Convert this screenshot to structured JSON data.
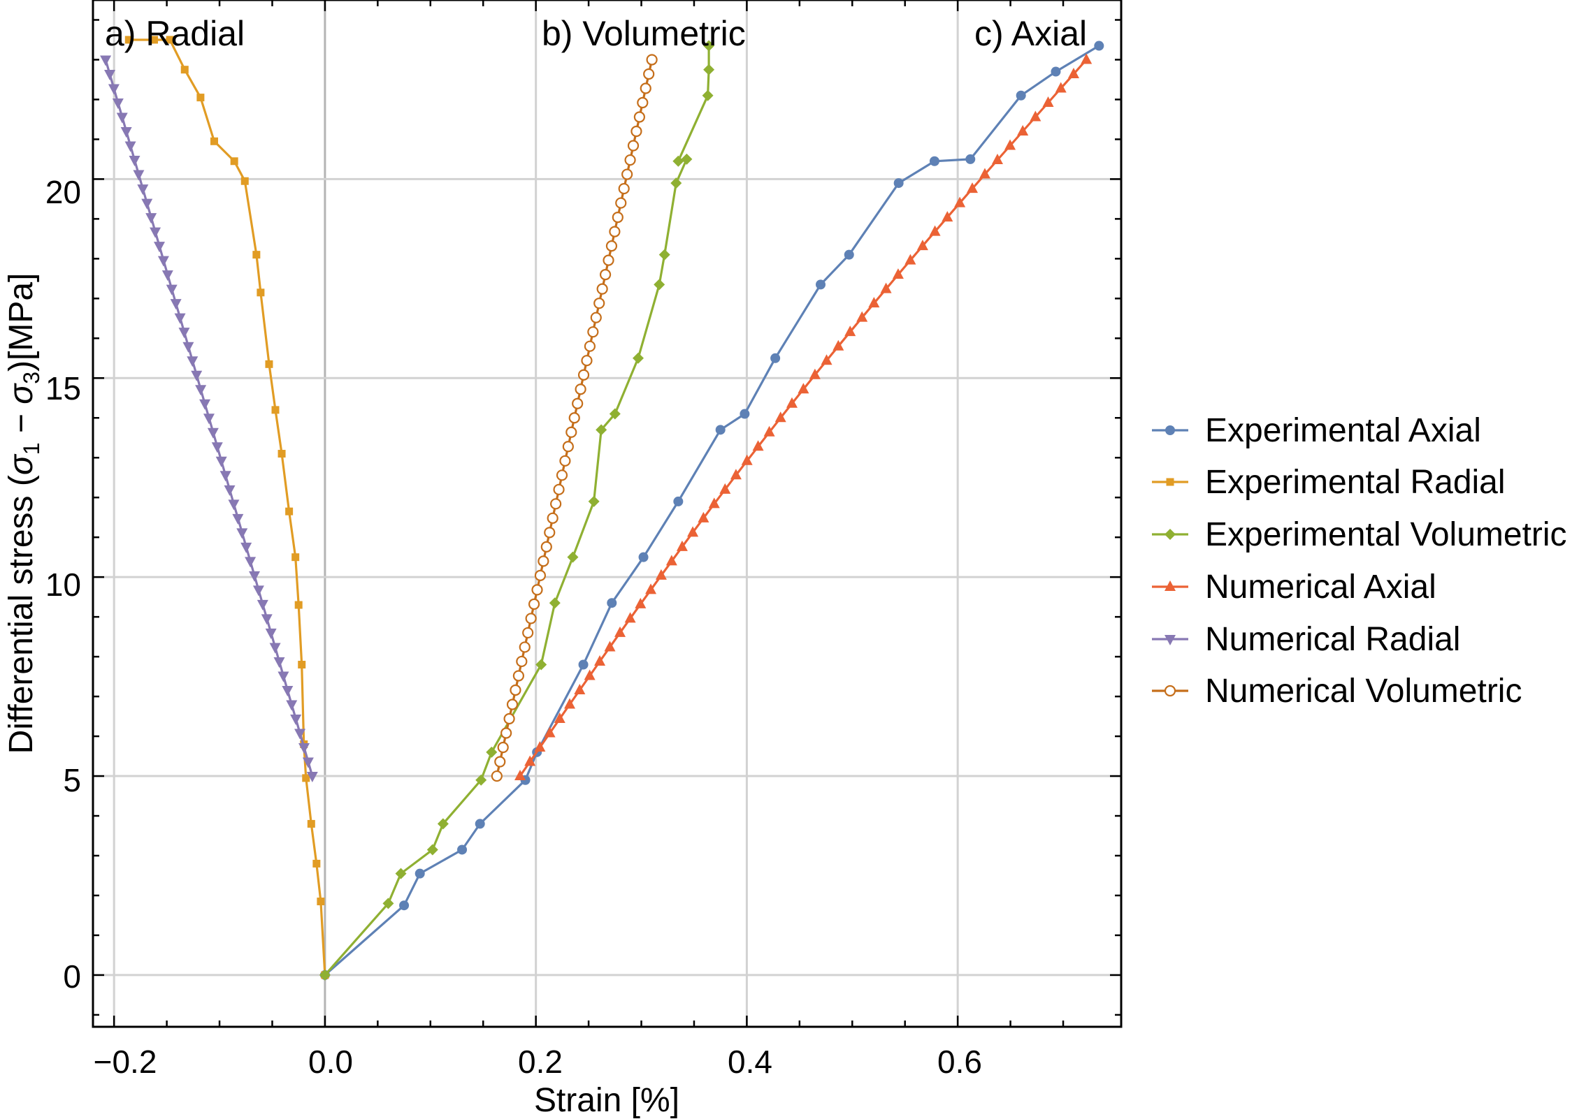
{
  "chart_data": {
    "type": "line",
    "xlabel": "Strain [%]",
    "ylabel_parts": [
      "Differential stress (",
      "σ",
      "1",
      " − ",
      "σ",
      "3",
      ")[MPa]"
    ],
    "xlim": [
      -0.22,
      0.755
    ],
    "ylim": [
      -1.3,
      24.5
    ],
    "x_ticks": [
      -0.2,
      0.0,
      0.2,
      0.4,
      0.6
    ],
    "x_tick_labels": [
      "−0.2",
      "0.0",
      "0.2",
      "0.4",
      "0.6"
    ],
    "y_ticks": [
      0,
      5,
      10,
      15,
      20
    ],
    "y_tick_labels": [
      "0",
      "5",
      "10",
      "15",
      "20"
    ],
    "grid": true,
    "legend_position": "right",
    "annotations": [
      {
        "text": "a) Radial",
        "x": -0.21,
        "y": 23.7
      },
      {
        "text": "b) Volumetric",
        "x": 0.2,
        "y": 23.7
      },
      {
        "text": "c) Axial",
        "x": 0.61,
        "y": 23.7
      }
    ],
    "colors": {
      "blue": "#5e81b5",
      "orange": "#e19c24",
      "green": "#8fb032",
      "red": "#eb6235",
      "purple": "#8778b3",
      "brown": "#c56e1a"
    },
    "series": [
      {
        "name": "Experimental Axial",
        "color": "#5e81b5",
        "marker": "circle",
        "x": [
          0.0,
          0.075,
          0.09,
          0.13,
          0.147,
          0.19,
          0.201,
          0.245,
          0.272,
          0.302,
          0.335,
          0.375,
          0.398,
          0.427,
          0.47,
          0.497,
          0.544,
          0.578,
          0.612,
          0.66,
          0.693,
          0.734
        ],
        "y": [
          0.0,
          1.75,
          2.55,
          3.15,
          3.8,
          4.9,
          5.6,
          7.8,
          9.35,
          10.5,
          11.9,
          13.7,
          14.1,
          15.5,
          17.35,
          18.1,
          19.9,
          20.45,
          20.5,
          22.1,
          22.7,
          23.35
        ]
      },
      {
        "name": "Experimental Radial",
        "color": "#e19c24",
        "marker": "square",
        "x": [
          0.0,
          -0.004,
          -0.008,
          -0.013,
          -0.018,
          -0.02,
          -0.022,
          -0.025,
          -0.028,
          -0.034,
          -0.041,
          -0.047,
          -0.053,
          -0.061,
          -0.065,
          -0.076,
          -0.086,
          -0.105,
          -0.118,
          -0.133,
          -0.147,
          -0.162,
          -0.186
        ],
        "y": [
          0.0,
          1.85,
          2.8,
          3.8,
          4.95,
          5.8,
          7.8,
          9.3,
          10.5,
          11.65,
          13.1,
          14.2,
          15.35,
          17.15,
          18.1,
          19.95,
          20.45,
          20.95,
          22.05,
          22.75,
          23.5,
          23.5,
          23.5
        ]
      },
      {
        "name": "Experimental Volumetric",
        "color": "#8fb032",
        "marker": "diamond",
        "x": [
          0.0,
          0.06,
          0.072,
          0.102,
          0.112,
          0.148,
          0.158,
          0.205,
          0.218,
          0.235,
          0.255,
          0.262,
          0.275,
          0.297,
          0.317,
          0.322,
          0.333,
          0.343,
          0.335,
          0.363,
          0.364,
          0.364
        ],
        "y": [
          0.0,
          1.8,
          2.55,
          3.15,
          3.8,
          4.9,
          5.6,
          7.8,
          9.35,
          10.5,
          11.9,
          13.7,
          14.1,
          15.5,
          17.35,
          18.1,
          19.9,
          20.5,
          20.45,
          22.1,
          22.75,
          23.35
        ]
      },
      {
        "name": "Numerical Axial",
        "color": "#eb6235",
        "marker": "triangle-up",
        "generator": {
          "x0": 0.185,
          "y0": 5.0,
          "x1": 0.722,
          "y1": 23.0,
          "n": 51,
          "bend": 0.04
        }
      },
      {
        "name": "Numerical Radial",
        "color": "#8778b3",
        "marker": "triangle-down",
        "generator": {
          "x0": -0.012,
          "y0": 5.0,
          "x1": -0.208,
          "y1": 23.0,
          "n": 51,
          "bend": 0.0
        }
      },
      {
        "name": "Numerical Volumetric",
        "color": "#c56e1a",
        "marker": "open-circle",
        "generator": {
          "x0": 0.163,
          "y0": 5.0,
          "x1": 0.31,
          "y1": 23.0,
          "n": 51,
          "bend": 0.0
        }
      }
    ]
  }
}
